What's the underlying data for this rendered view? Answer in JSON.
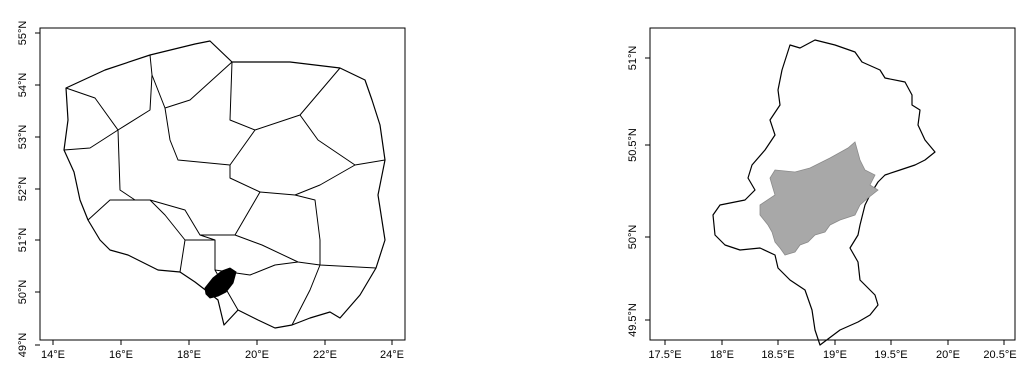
{
  "maps": [
    {
      "id": "poland",
      "x_ticks": [
        "14°E",
        "16°E",
        "18°E",
        "20°E",
        "22°E",
        "24°E"
      ],
      "y_ticks": [
        "49°N",
        "50°N",
        "51°N",
        "52°N",
        "53°N",
        "54°N",
        "55°N"
      ],
      "highlight_color": "#000000"
    },
    {
      "id": "silesia",
      "x_ticks": [
        "17.5°E",
        "18°E",
        "18.5°E",
        "19°E",
        "19.5°E",
        "20°E",
        "20.5°E"
      ],
      "y_ticks": [
        "49.5°N",
        "50°N",
        "50.5°N",
        "51°N"
      ],
      "highlight_color": "#a8a8a8"
    }
  ]
}
